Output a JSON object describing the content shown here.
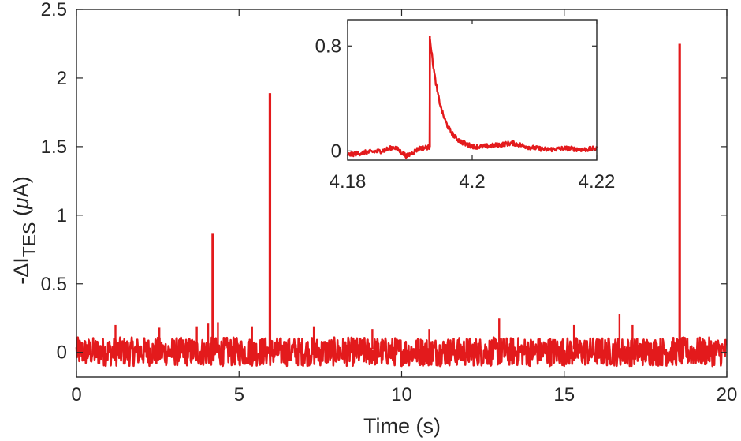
{
  "chart_data": [
    {
      "type": "line",
      "title": "",
      "xlabel": "Time (s)",
      "ylabel": {
        "prefix": "-ΔI",
        "subscript": "TES",
        "unit_open": " (",
        "unit_italic": "μ",
        "unit_close": "A)"
      },
      "xlim": [
        0,
        20
      ],
      "ylim": [
        -0.18,
        2.5
      ],
      "xticks": [
        0,
        5,
        10,
        15,
        20
      ],
      "xtick_labels": [
        "0",
        "5",
        "10",
        "15",
        "20"
      ],
      "yticks": [
        0,
        0.5,
        1,
        1.5,
        2,
        2.5
      ],
      "ytick_labels": [
        "0",
        "0.5",
        "1",
        "1.5",
        "2",
        "2.5"
      ],
      "grid": false,
      "line_color": "#e31a1c",
      "noise_band": [
        -0.1,
        0.11
      ],
      "peaks": [
        {
          "x": 4.19,
          "y": 0.87
        },
        {
          "x": 5.95,
          "y": 1.89
        },
        {
          "x": 18.55,
          "y": 2.25
        }
      ],
      "small_spikes": [
        {
          "x": 1.2,
          "y": 0.2
        },
        {
          "x": 2.55,
          "y": 0.18
        },
        {
          "x": 3.7,
          "y": 0.19
        },
        {
          "x": 4.05,
          "y": 0.21
        },
        {
          "x": 4.35,
          "y": 0.22
        },
        {
          "x": 5.4,
          "y": 0.19
        },
        {
          "x": 7.3,
          "y": 0.19
        },
        {
          "x": 9.1,
          "y": 0.17
        },
        {
          "x": 10.85,
          "y": 0.17
        },
        {
          "x": 13.0,
          "y": 0.25
        },
        {
          "x": 15.3,
          "y": 0.2
        },
        {
          "x": 16.7,
          "y": 0.28
        },
        {
          "x": 17.1,
          "y": 0.2
        }
      ]
    },
    {
      "type": "line",
      "title": "",
      "xlabel": "",
      "ylabel": "",
      "xlim": [
        4.18,
        4.22
      ],
      "ylim": [
        -0.07,
        1.0
      ],
      "xticks": [
        4.18,
        4.2,
        4.22
      ],
      "xtick_labels": [
        "4.18",
        "4.2",
        "4.22"
      ],
      "yticks": [
        0,
        0.8
      ],
      "ytick_labels": [
        "0",
        "0.8"
      ],
      "grid": false,
      "line_color": "#e31a1c",
      "pulse": {
        "onset_x": 4.1932,
        "peak_y": 0.88,
        "decay_to_x": 4.2005
      },
      "baseline": [
        {
          "x": 4.18,
          "y": -0.03
        },
        {
          "x": 4.183,
          "y": -0.01
        },
        {
          "x": 4.1855,
          "y": 0.0
        },
        {
          "x": 4.1875,
          "y": 0.03
        },
        {
          "x": 4.1895,
          "y": -0.04
        },
        {
          "x": 4.1915,
          "y": 0.02
        },
        {
          "x": 4.1931,
          "y": 0.03
        },
        {
          "x": 4.2005,
          "y": 0.02
        },
        {
          "x": 4.2035,
          "y": 0.04
        },
        {
          "x": 4.2065,
          "y": 0.06
        },
        {
          "x": 4.209,
          "y": 0.03
        },
        {
          "x": 4.212,
          "y": 0.01
        },
        {
          "x": 4.215,
          "y": 0.02
        },
        {
          "x": 4.218,
          "y": 0.01
        },
        {
          "x": 4.22,
          "y": 0.02
        }
      ]
    }
  ]
}
